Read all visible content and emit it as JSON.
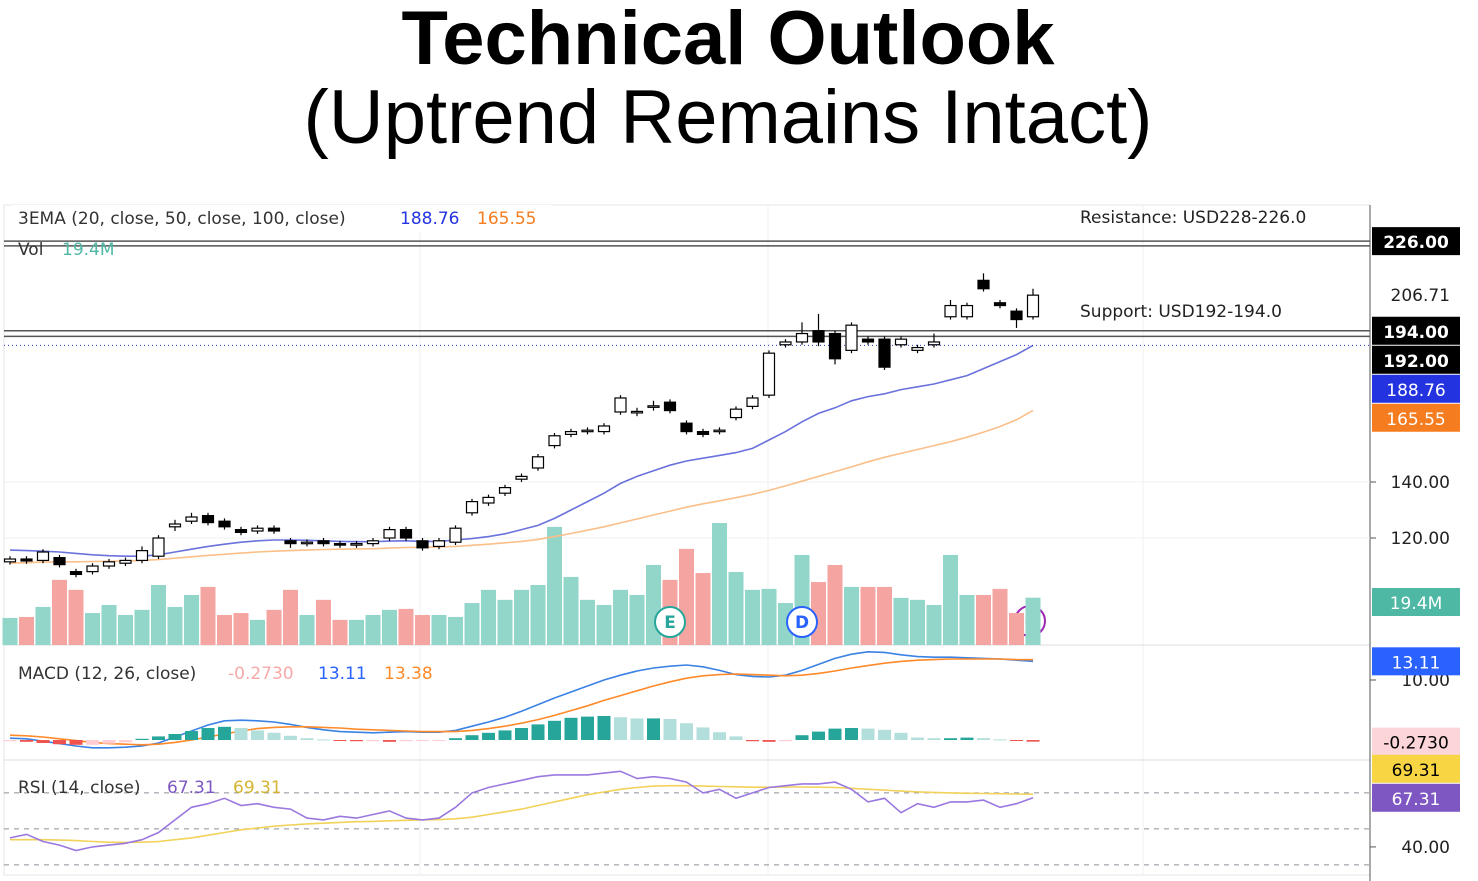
{
  "header": {
    "title": "Technical Outlook",
    "subtitle": "(Uptrend Remains Intact)"
  },
  "chart_data": [
    {
      "type": "candlestick",
      "label": "3EMA (20, close, 50, close, 100, close)",
      "annotations": [
        "Resistance: USD228-226.0",
        "Support: USD192-194.0"
      ],
      "events": [
        "E",
        "D"
      ],
      "up_color": "#ffffff",
      "down_color": "#000000",
      "ylim": [
        81.8,
        238.9
      ],
      "yticks": [
        {
          "value": 140,
          "label": "140.00"
        },
        {
          "value": 120,
          "label": "120.00"
        }
      ],
      "grid": true,
      "levels": [
        {
          "value": 226,
          "label": "226.00"
        },
        224.3,
        {
          "value": 194,
          "label": "194.00"
        },
        {
          "value": 192,
          "label": "192.00"
        }
      ],
      "open": [
        111.5,
        112.5,
        112,
        113,
        108,
        108,
        110,
        111,
        112,
        113.5,
        124,
        126,
        128,
        126,
        123,
        122.5,
        123.5,
        119,
        118,
        119,
        118,
        117.5,
        118,
        120,
        123,
        119,
        117,
        118.5,
        129,
        132.5,
        136,
        141,
        145,
        153,
        157,
        158,
        158,
        165,
        164.8,
        166.8,
        168.5,
        161,
        158,
        158,
        163,
        167,
        171,
        189,
        190,
        194,
        193,
        187,
        191,
        191,
        189,
        187,
        189,
        199,
        199,
        212,
        204,
        201,
        199
      ],
      "high": [
        113.5,
        113.5,
        116,
        114,
        109,
        111,
        112.5,
        113,
        117,
        121,
        126.5,
        129,
        129,
        127,
        124,
        124.5,
        124.5,
        120,
        119.5,
        120,
        119,
        119,
        120,
        124,
        124,
        120,
        120,
        124.5,
        134,
        135.5,
        139,
        143,
        150,
        157.5,
        159,
        159.5,
        161,
        171,
        166.5,
        169,
        169.5,
        162,
        159,
        159.5,
        167,
        171,
        187,
        191,
        197,
        200,
        194,
        197,
        192,
        192,
        192,
        189,
        193,
        205,
        204,
        214.5,
        205,
        202,
        209
      ],
      "low": [
        110.5,
        110.8,
        111,
        109.5,
        106,
        107,
        109,
        110,
        111,
        112.5,
        122.5,
        125,
        124.5,
        123,
        121,
        121.5,
        121.5,
        116.5,
        117,
        117,
        116.5,
        116.5,
        117,
        119,
        119,
        115.5,
        116,
        117.5,
        128,
        131.5,
        135,
        140,
        144,
        152,
        156,
        157,
        157,
        164,
        163.5,
        165.5,
        164.5,
        157,
        156,
        157,
        162,
        166,
        170,
        188,
        189,
        188.5,
        182,
        186,
        189,
        180,
        188,
        186,
        188,
        198,
        198,
        208,
        202,
        195,
        198
      ],
      "close": [
        112.5,
        111.8,
        115,
        110.5,
        107,
        110,
        111.5,
        112,
        115.5,
        120,
        125,
        127.5,
        125.5,
        124,
        122,
        123.5,
        122.5,
        118,
        118.5,
        118,
        117.5,
        118,
        119,
        123,
        120,
        116.5,
        119,
        123.5,
        133,
        134.5,
        138,
        142,
        149,
        156.5,
        158,
        158.5,
        160,
        170,
        165.2,
        167.2,
        165.5,
        158,
        157,
        158.5,
        166,
        170,
        186,
        190,
        193,
        190,
        184,
        196,
        190,
        181,
        191,
        188,
        190,
        203,
        203,
        209,
        203,
        198,
        206.71
      ],
      "series": [
        {
          "color": "#6a72dc",
          "tag_color": "#2433e0",
          "values": [
            115.7,
            115.5,
            115.3,
            115,
            114.5,
            114,
            113.7,
            113.5,
            113.5,
            114,
            115,
            116,
            117,
            117.8,
            118.5,
            119,
            119.3,
            119.3,
            119.2,
            119,
            118.8,
            118.7,
            118.7,
            118.9,
            119,
            118.8,
            118.8,
            119.3,
            119.8,
            120.5,
            121.5,
            123,
            124.5,
            127,
            130,
            133,
            136,
            139.5,
            142,
            144,
            146,
            147.5,
            148.5,
            149.5,
            150.5,
            152,
            155,
            158,
            161.5,
            164.5,
            166.5,
            169,
            170.5,
            171.5,
            173,
            174,
            175,
            176.5,
            178,
            180.5,
            183,
            185.5,
            188.76
          ]
        },
        {
          "color": "#fbbf8a",
          "tag_color": "#f57c1f",
          "values": [
            111,
            111.2,
            111.4,
            111.5,
            111.5,
            111.6,
            111.7,
            111.8,
            112,
            112.3,
            112.8,
            113.3,
            113.8,
            114.2,
            114.6,
            115,
            115.3,
            115.5,
            115.7,
            115.9,
            116,
            116.1,
            116.2,
            116.4,
            116.6,
            116.7,
            116.8,
            117,
            117.4,
            117.8,
            118.3,
            118.8,
            119.5,
            120.5,
            121.6,
            122.8,
            124,
            125.4,
            126.8,
            128.2,
            129.6,
            131,
            132.2,
            133.3,
            134.4,
            135.6,
            137,
            138.6,
            140.3,
            142,
            143.7,
            145.4,
            147.2,
            148.8,
            150.2,
            151.6,
            153,
            154.4,
            156,
            157.8,
            159.8,
            162.2,
            165.55
          ]
        }
      ]
    },
    {
      "type": "volume",
      "label": "Vol",
      "ylim": [
        0,
        66.8
      ],
      "up_color": "#92d5c9",
      "down_color": "#f5a5a1",
      "tag_color": "#4fb8a5",
      "values": [
        11.1,
        11.5,
        15.6,
        26.7,
        22.6,
        13.1,
        16.4,
        12.3,
        14.4,
        24.6,
        15.6,
        20.5,
        23.8,
        12.3,
        13.1,
        10.3,
        14.4,
        22.6,
        12.3,
        18.5,
        10.3,
        10.3,
        12.3,
        14.4,
        14.8,
        12.3,
        12.3,
        11.5,
        17.2,
        22.6,
        18.5,
        22.6,
        24.6,
        48.4,
        27.9,
        18.5,
        16.4,
        22.6,
        20.5,
        32.8,
        26.7,
        39.4,
        29.5,
        50,
        29.9,
        22.6,
        23,
        17.2,
        36.9,
        25.8,
        32.8,
        23.8,
        23.8,
        23.8,
        19.3,
        18.5,
        16.4,
        36.9,
        20.5,
        20.5,
        23,
        13.1,
        19.4
      ],
      "value_labels": {
        "62": "19.4M"
      }
    },
    {
      "type": "macd",
      "label": "MACD (12, 26, close)",
      "ylim": [
        -3.33,
        15.83
      ],
      "yticks": [
        {
          "value": 10,
          "label": "10.00"
        }
      ],
      "series": [
        {
          "type": "line",
          "color": "#3a82e4",
          "tag_color": "#2962ff",
          "values": [
            0.3,
            0.2,
            -0.2,
            -0.6,
            -1,
            -1.3,
            -1.3,
            -1.2,
            -1,
            -0.5,
            0.5,
            1.5,
            2.5,
            3.2,
            3.3,
            3.2,
            3,
            2.6,
            2.1,
            1.7,
            1.4,
            1.3,
            1.2,
            1.3,
            1.4,
            1.3,
            1.3,
            1.6,
            2.3,
            3,
            3.8,
            4.8,
            5.9,
            7,
            8,
            9,
            10,
            10.8,
            11.5,
            12,
            12.3,
            12.5,
            12.2,
            11.6,
            10.9,
            10.6,
            10.5,
            10.8,
            11.6,
            12.6,
            13.6,
            14.3,
            14.7,
            14.6,
            14.2,
            13.9,
            13.8,
            13.8,
            13.7,
            13.6,
            13.5,
            13.3,
            13.11
          ]
        },
        {
          "type": "line",
          "color": "#ff8a2a",
          "values": [
            0.8,
            0.7,
            0.5,
            0.2,
            -0.1,
            -0.4,
            -0.6,
            -0.7,
            -0.8,
            -0.7,
            -0.4,
            0,
            0.5,
            1,
            1.5,
            1.9,
            2.1,
            2.2,
            2.2,
            2.1,
            2,
            1.8,
            1.7,
            1.6,
            1.5,
            1.4,
            1.4,
            1.4,
            1.6,
            1.9,
            2.3,
            2.8,
            3.4,
            4.1,
            4.9,
            5.7,
            6.6,
            7.4,
            8.2,
            9,
            9.7,
            10.3,
            10.7,
            10.9,
            11,
            10.9,
            10.8,
            10.7,
            10.8,
            11.1,
            11.5,
            12,
            12.4,
            12.8,
            13.1,
            13.3,
            13.4,
            13.5,
            13.5,
            13.5,
            13.5,
            13.4,
            13.38
          ]
        },
        {
          "type": "histogram",
          "color": "#f7a9a9",
          "tag_color": "#fcd5d8",
          "values": [
            -0.2,
            -0.3,
            -0.5,
            -0.7,
            -0.8,
            -0.8,
            -0.6,
            -0.4,
            0.2,
            0.6,
            1,
            1.5,
            2,
            2.2,
            2,
            1.6,
            1.2,
            0.7,
            0.3,
            0.1,
            -0.1,
            -0.2,
            -0.2,
            -0.3,
            -0.2,
            -0.1,
            -0.1,
            0.3,
            0.8,
            1.2,
            1.6,
            2,
            2.6,
            3.2,
            3.7,
            3.9,
            4,
            3.8,
            3.6,
            3.6,
            3.5,
            2.8,
            2.1,
            1.3,
            0.6,
            -0.2,
            -0.3,
            -0.2,
            0.8,
            1.4,
            1.9,
            2,
            1.9,
            1.7,
            1.2,
            0.4,
            0.3,
            0.3,
            0.4,
            0.3,
            0.1,
            -0.1,
            -0.273
          ],
          "value_labels": {
            "62": "-0.2730"
          }
        }
      ]
    },
    {
      "type": "rsi",
      "label": "RSI (14, close)",
      "ylim": [
        24.4,
        88.3
      ],
      "yticks": [
        {
          "value": 40,
          "label": "40.00"
        }
      ],
      "bands": [
        70,
        50,
        30
      ],
      "series": [
        {
          "color": "#9a78e0",
          "tag_color": "#7e57c2",
          "values": [
            45,
            47,
            43,
            41,
            38,
            40,
            41,
            42,
            44,
            48,
            55,
            62,
            64,
            67,
            63,
            64,
            62,
            61,
            56,
            55,
            57,
            56,
            58,
            60,
            56,
            55,
            56,
            62,
            70,
            73,
            75,
            77,
            79,
            80,
            80,
            80,
            81,
            82,
            78,
            79,
            78,
            76,
            70,
            72,
            67,
            70,
            73,
            74,
            75,
            75,
            76,
            72,
            65,
            67,
            59,
            64,
            62,
            65,
            65,
            66,
            62,
            64,
            67.31
          ]
        },
        {
          "color": "#f2d25a",
          "tag_color": "#f7d543",
          "values": [
            44,
            44,
            44,
            43.8,
            43.5,
            43,
            42.6,
            42.5,
            42.6,
            43,
            44,
            45,
            46.5,
            48,
            49.5,
            50.5,
            51.5,
            52.2,
            52.8,
            53.2,
            53.6,
            54,
            54.2,
            54.5,
            54.8,
            55,
            55.2,
            55.6,
            56.5,
            58,
            59.5,
            61,
            63,
            65,
            67,
            69,
            70.5,
            72,
            73,
            73.8,
            74,
            74,
            73.8,
            73.6,
            73.4,
            73.2,
            73.2,
            73.3,
            73.3,
            73.2,
            73,
            72.6,
            72,
            71.6,
            71,
            70.6,
            70.3,
            70,
            69.8,
            69.7,
            69.6,
            69.4,
            69.31
          ]
        }
      ]
    }
  ]
}
